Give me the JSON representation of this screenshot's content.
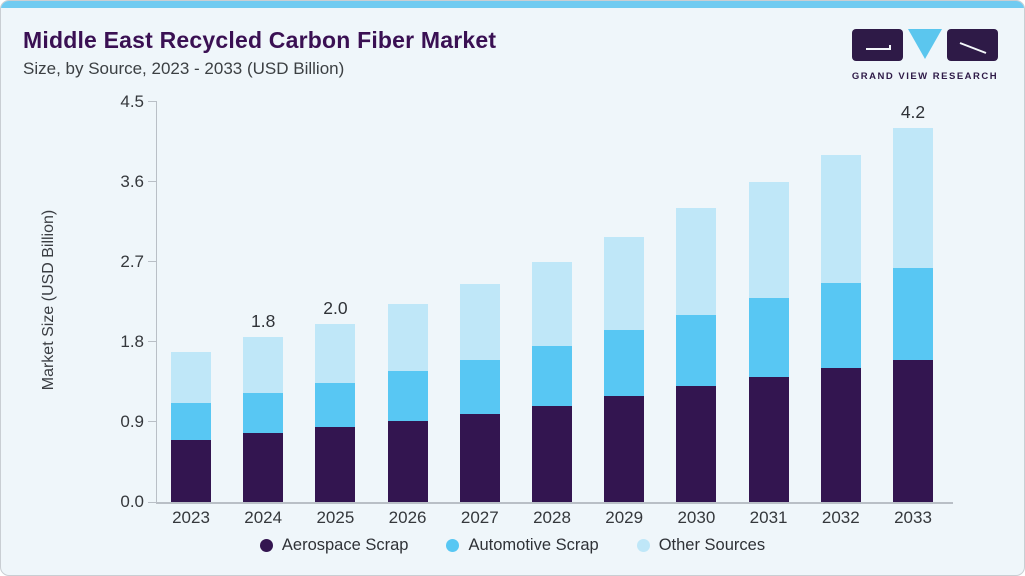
{
  "header": {
    "title": "Middle East Recycled Carbon Fiber Market",
    "subtitle": "Size, by Source, 2023 - 2033 (USD Billion)"
  },
  "brand": {
    "name": "GRAND VIEW RESEARCH",
    "logo_icon": "gvr-logo-icon"
  },
  "colors": {
    "accent": "#70cbf1",
    "title": "#3a1053",
    "text": "#3c4043",
    "axis": "#b9bfc6",
    "bg": "#eff6fa",
    "border": "#c9ced3",
    "logodark": "#2e1a47",
    "logoblue": "#5bc6ee"
  },
  "chart_data": {
    "type": "bar",
    "stacked": true,
    "title": "Middle East Recycled Carbon Fiber Market Size, by Source, 2023 - 2033 (USD Billion)",
    "xlabel": "",
    "ylabel": "Market Size (USD Billion)",
    "ylim": [
      0,
      4.5
    ],
    "yticks": [
      "0.0",
      "0.9",
      "1.8",
      "2.7",
      "3.6",
      "4.5"
    ],
    "grid": false,
    "legend_position": "bottom",
    "categories": [
      "2023",
      "2024",
      "2025",
      "2026",
      "2027",
      "2028",
      "2029",
      "2030",
      "2031",
      "2032",
      "2033"
    ],
    "series": [
      {
        "name": "Aerospace Scrap",
        "color": "#331550",
        "values": [
          0.7,
          0.77,
          0.84,
          0.91,
          0.99,
          1.08,
          1.19,
          1.3,
          1.4,
          1.51,
          1.6
        ]
      },
      {
        "name": "Automotive Scrap",
        "color": "#58c7f3",
        "values": [
          0.41,
          0.46,
          0.5,
          0.56,
          0.61,
          0.67,
          0.74,
          0.8,
          0.89,
          0.95,
          1.03
        ]
      },
      {
        "name": "Other Sources",
        "color": "#bfe7f8",
        "values": [
          0.57,
          0.62,
          0.66,
          0.75,
          0.85,
          0.95,
          1.05,
          1.2,
          1.31,
          1.44,
          1.57
        ]
      }
    ],
    "annotations": [
      {
        "category": "2024",
        "label": "1.8"
      },
      {
        "category": "2025",
        "label": "2.0"
      },
      {
        "category": "2033",
        "label": "4.2"
      }
    ]
  }
}
